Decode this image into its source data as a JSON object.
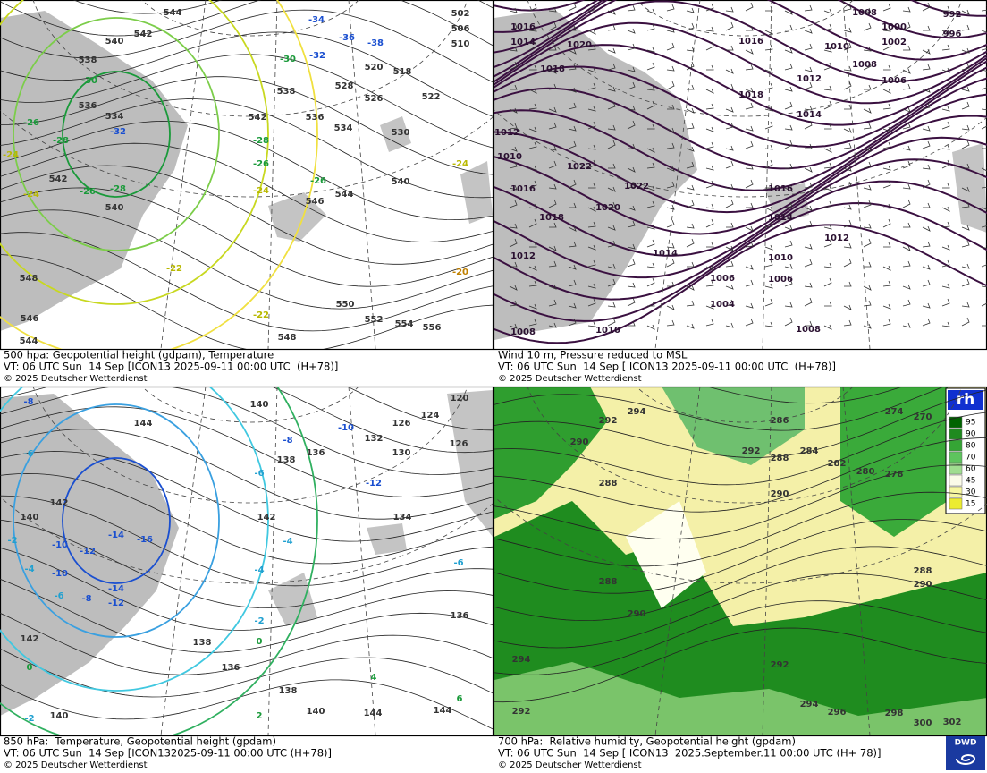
{
  "panels": [
    {
      "caption": [
        "500 hpa: Geopotential height (gdpam), Temperature",
        "VT: 06 UTC Sun  14 Sep [ICON13 2025-09-11 00:00 UTC  (H+78)]",
        "© 2025 Deutscher Wetterdienst"
      ],
      "labels": [
        "544",
        "542",
        "540",
        "538",
        "536",
        "534",
        "-32",
        "-30",
        "-28",
        "-26",
        "-24",
        "-24",
        "-26",
        "-28",
        "540",
        "542",
        "-22",
        "-22",
        "548",
        "546",
        "544",
        "548",
        "550",
        "552",
        "554",
        "556",
        "-20",
        "-24",
        "540",
        "544",
        "546",
        "-26",
        "-24",
        "-26",
        "-28",
        "542",
        "538",
        "536",
        "534",
        "530",
        "528",
        "526",
        "522",
        "520",
        "518",
        "-30",
        "-32",
        "-34",
        "-36",
        "-38",
        "510",
        "506",
        "502"
      ]
    },
    {
      "caption": [
        "Wind 10 m, Pressure reduced to MSL",
        "VT: 06 UTC Sun  14 Sep [ ICON13 2025-09-11 00:00 UTC  (H+78)]",
        "© 2025 Deutscher Wetterdienst"
      ],
      "labels": [
        "1016",
        "1014",
        "1020",
        "1018",
        "1016",
        "1010",
        "1008",
        "1000",
        "992",
        "996",
        "1002",
        "1008",
        "1006",
        "1012",
        "1018",
        "1014",
        "1012",
        "1010",
        "1022",
        "1016",
        "1022",
        "1020",
        "1018",
        "1016",
        "1014",
        "1012",
        "1014",
        "1010",
        "1012",
        "1006",
        "1006",
        "1004",
        "1008",
        "1010",
        "1008"
      ]
    },
    {
      "caption": [
        "850 hPa:  Temperature, Geopotential height (gpdam)",
        "VT: 06 UTC Sun  14 Sep [ICON132025-09-11 00:00 UTC (H+78)]",
        "© 2025 Deutscher Wetterdienst"
      ],
      "labels": [
        "140",
        "126",
        "124",
        "120",
        "126",
        "132",
        "130",
        "136",
        "138",
        "144",
        "142",
        "140",
        "142",
        "140",
        "142",
        "138",
        "136",
        "138",
        "140",
        "144",
        "144",
        "136",
        "134",
        "-8",
        "-6",
        "-8",
        "-10",
        "-12",
        "-6",
        "-6",
        "-4",
        "-4",
        "-2",
        "0",
        "2",
        "4",
        "6",
        "0",
        "-2",
        "-2",
        "-4",
        "-6",
        "-8",
        "-10",
        "-10",
        "-12",
        "-14",
        "-16",
        "-14",
        "-12"
      ]
    },
    {
      "caption": [
        "700 hPa:  Relative humidity, Geopotential height (gpdam)",
        "VT: 06 UTC Sun  14 Sep [ ICON13  2025.September.11 00:00 UTC (H+ 78)]",
        "© 2025 Deutscher Wetterdienst"
      ],
      "labels": [
        "294",
        "292",
        "290",
        "288",
        "288",
        "286",
        "288",
        "292",
        "290",
        "284",
        "282",
        "280",
        "278",
        "274",
        "270",
        "288",
        "290",
        "292",
        "294",
        "292",
        "294",
        "296",
        "298",
        "300",
        "302",
        "290"
      ]
    }
  ],
  "legend": {
    "title": "rh",
    "levels": [
      "95",
      "90",
      "80",
      "70",
      "60",
      "45",
      "30",
      "15"
    ]
  },
  "logo": "DWD"
}
